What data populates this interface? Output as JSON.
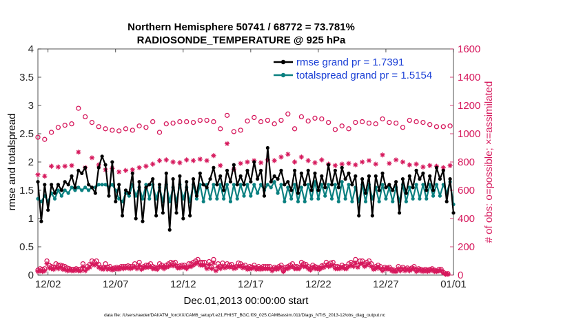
{
  "colors": {
    "rmse": "#000000",
    "spread": "#0a8080",
    "obs": "#d6185c",
    "legend_text": "#1a3fd6",
    "axis": "#262626"
  },
  "chart_data": {
    "type": "line",
    "title": "Northern Hemisphere 50741 / 68772 = 73.781%",
    "subtitle": "RADIOSONDE_TEMPERATURE @ 925 hPa",
    "xlabel": "Dec.01,2013 00:00:00 start",
    "ylabel": "rmse and totalspread",
    "ylabel_right": "# of obs: o=possible; ×=assimilated",
    "footer": "data file: /Users/raeder/DAI/ATM_forcXX/CAM6_setup/f.e21.FHIST_BGC.f09_025.CAM6assim.011/Diags_NTrS_2013-12/obs_diag_output.nc",
    "x_ticks": [
      "12/02",
      "12/07",
      "12/12",
      "12/17",
      "12/22",
      "12/27",
      "01/01"
    ],
    "x_tick_days": [
      1,
      6,
      11,
      16,
      21,
      26,
      31
    ],
    "xlim_days": [
      0.25,
      31.0
    ],
    "ylim": [
      0,
      4
    ],
    "y_ticks": [
      "0",
      "0.5",
      "1",
      "1.5",
      "2",
      "2.5",
      "3",
      "3.5",
      "4"
    ],
    "ylim_right": [
      0,
      1600
    ],
    "y_ticks_right": [
      "0",
      "200",
      "400",
      "600",
      "800",
      "1000",
      "1200",
      "1400",
      "1600"
    ],
    "legend_position": "top-right",
    "series": [
      {
        "name": "rmse grand pr = 1.7391",
        "axis": "left",
        "marker": "dot",
        "x_start_day": 0.25,
        "x_step_day": 0.25,
        "values": [
          1.65,
          0.95,
          1.6,
          1.15,
          1.6,
          1.45,
          1.6,
          1.5,
          1.65,
          1.6,
          1.75,
          1.55,
          1.85,
          1.8,
          1.9,
          1.6,
          1.55,
          1.45,
          1.9,
          2.1,
          1.95,
          1.4,
          2.0,
          1.3,
          1.6,
          1.05,
          1.5,
          1.45,
          1.8,
          1.0,
          1.65,
          0.95,
          1.55,
          1.6,
          1.7,
          1.05,
          1.6,
          1.1,
          1.8,
          0.8,
          1.7,
          1.1,
          1.75,
          1.0,
          1.65,
          1.05,
          1.7,
          1.4,
          1.8,
          1.6,
          1.55,
          1.7,
          1.9,
          1.6,
          1.75,
          1.5,
          1.85,
          1.65,
          1.95,
          1.6,
          1.75,
          1.6,
          1.85,
          1.65,
          2.0,
          1.7,
          1.85,
          1.4,
          2.25,
          1.65,
          1.75,
          1.7,
          1.85,
          1.6,
          1.65,
          1.5,
          1.85,
          1.45,
          1.8,
          1.6,
          1.85,
          1.5,
          1.8,
          1.5,
          1.75,
          1.55,
          1.95,
          1.6,
          1.85,
          1.55,
          1.9,
          1.7,
          1.8,
          1.6,
          1.75,
          1.05,
          1.7,
          1.45,
          1.75,
          1.05,
          1.75,
          1.5,
          1.8,
          1.55,
          1.6,
          1.5,
          1.65,
          1.1,
          1.7,
          1.45,
          1.75,
          1.55,
          1.85,
          1.7,
          1.8,
          1.5,
          1.75,
          1.5,
          1.9,
          1.7,
          1.85,
          1.3,
          1.7,
          1.5,
          1.75,
          1.55,
          1.85,
          1.5,
          1.75,
          1.6,
          1.95,
          1.7,
          1.75,
          1.55,
          1.75,
          1.05,
          1.8,
          0.95,
          1.75,
          1.45,
          1.85,
          1.5,
          1.7,
          1.55,
          1.95,
          1.9,
          1.85,
          1.45,
          1.8,
          1.3,
          1.7,
          1.4,
          1.95,
          1.6,
          1.85,
          1.75,
          1.8,
          1.55,
          1.75,
          1.5,
          1.85,
          1.65,
          1.8,
          1.45,
          1.5,
          1.35,
          1.75,
          1.55,
          1.85,
          0.65,
          1.75,
          1.55,
          1.8,
          1.55,
          1.7,
          1.5,
          1.8,
          1.6,
          1.75,
          1.55,
          1.85,
          1.5,
          1.85,
          1.6,
          1.75,
          1.55,
          1.85,
          1.4,
          1.75,
          1.6,
          1.85,
          1.2,
          1.75,
          1.65,
          1.8,
          1.25,
          1.7,
          1.15
        ],
        "last_point": [
          31.0,
          1.1
        ]
      },
      {
        "name": "totalspread grand pr = 1.5154",
        "axis": "left",
        "marker": "dot",
        "x_start_day": 0.25,
        "x_step_day": 0.25,
        "values": [
          1.35,
          1.3,
          1.4,
          1.3,
          1.45,
          1.35,
          1.5,
          1.4,
          1.5,
          1.45,
          1.55,
          1.5,
          1.55,
          1.5,
          1.55,
          1.5,
          1.55,
          1.55,
          1.6,
          1.6,
          1.6,
          1.55,
          1.6,
          1.5,
          1.35,
          1.3,
          1.45,
          1.4,
          1.6,
          1.4,
          1.55,
          1.35,
          1.6,
          1.35,
          1.6,
          1.35,
          1.55,
          1.3,
          1.6,
          1.3,
          1.55,
          1.3,
          1.6,
          1.35,
          1.55,
          1.3,
          1.6,
          1.35,
          1.6,
          1.3,
          1.6,
          1.35,
          1.6,
          1.35,
          1.6,
          1.35,
          1.6,
          1.3,
          1.6,
          1.35,
          1.6,
          1.4,
          1.6,
          1.4,
          1.6,
          1.45,
          1.6,
          1.5,
          1.6,
          1.55,
          1.65,
          1.45,
          1.6,
          1.3,
          1.55,
          1.35,
          1.6,
          1.3,
          1.55,
          1.3,
          1.6,
          1.35,
          1.65,
          1.35,
          1.6,
          1.4,
          1.6,
          1.35,
          1.6,
          1.3,
          1.65,
          1.35,
          1.6,
          1.3,
          1.55,
          1.3,
          1.6,
          1.3,
          1.6,
          1.35,
          1.55,
          1.3,
          1.6,
          1.35,
          1.55,
          1.3,
          1.55,
          1.3,
          1.6,
          1.3,
          1.55,
          1.35,
          1.6,
          1.35,
          1.6,
          1.35,
          1.6,
          1.4,
          1.6,
          1.4,
          1.6,
          1.45,
          1.65,
          1.4,
          1.6,
          1.5,
          1.6,
          1.45,
          1.6,
          1.45,
          1.55,
          1.5,
          1.6,
          1.5,
          1.55,
          1.5,
          1.55,
          1.5,
          1.6,
          1.35,
          1.55,
          1.3,
          1.6,
          1.3,
          1.55,
          1.3,
          1.6,
          1.35,
          1.55,
          1.3,
          1.6,
          1.3,
          1.55,
          1.3,
          1.6,
          1.3,
          1.55,
          1.35,
          1.6,
          1.3,
          1.6,
          1.35,
          1.55,
          1.3,
          1.6,
          1.3,
          1.55,
          1.3,
          1.55,
          1.3,
          1.6,
          1.35,
          1.55,
          1.3,
          1.6,
          1.3,
          1.55,
          1.3,
          1.6,
          1.3,
          1.55,
          1.35,
          1.6,
          1.3,
          1.55,
          1.3,
          1.6,
          1.3,
          1.55,
          1.2,
          1.6,
          1.3,
          1.55,
          1.2
        ],
        "last_point": [
          31.0,
          1.25
        ]
      },
      {
        "name": "obs possible (o)",
        "axis": "right",
        "marker": "circle",
        "x_start_day": 0.25,
        "x_step_day": 0.5,
        "values": [
          975,
          960,
          1010,
          1045,
          1060,
          1070,
          1180,
          1120,
          1080,
          1050,
          1035,
          1025,
          1020,
          1035,
          1025,
          1055,
          1045,
          1085,
          1010,
          1070,
          1075,
          1085,
          1085,
          1080,
          1095,
          1095,
          1085,
          1035,
          1130,
          1015,
          1025,
          1090,
          1115,
          1085,
          1095,
          1070,
          1095,
          1140,
          1035,
          1120,
          1090,
          1110,
          1105,
          1080,
          1030,
          1055,
          1035,
          1080,
          1085,
          1075,
          1070,
          1105,
          1080,
          1075,
          1045,
          1095,
          1085,
          1080,
          1065,
          1050,
          1050,
          1055,
          1035,
          1000,
          1030,
          1040,
          1065,
          1040,
          1060,
          1050,
          1060,
          1050
        ],
        "possible_low_values": [
          35,
          45,
          40,
          45,
          100,
          70,
          60,
          55,
          80,
          70,
          70,
          65,
          60,
          50,
          45,
          40,
          40,
          45,
          40,
          40,
          80,
          40,
          60,
          75,
          100,
          90,
          100,
          75,
          55,
          50,
          80,
          55,
          60,
          45,
          50,
          55,
          50,
          60,
          60,
          60,
          65,
          60,
          60,
          80,
          55,
          90,
          50,
          60,
          70,
          70,
          80,
          60,
          55,
          50,
          80,
          70,
          60,
          70,
          80,
          90,
          85,
          90,
          60,
          65,
          70,
          70,
          55,
          80,
          80,
          90,
          100,
          110,
          90,
          90,
          90,
          60,
          95,
          55,
          110,
          40,
          80,
          60,
          85,
          60,
          80,
          70,
          75,
          55,
          60,
          85,
          80,
          65,
          70,
          50,
          60,
          55,
          70,
          50,
          60,
          50,
          60,
          60,
          60,
          60,
          40,
          55,
          50,
          60,
          70,
          30,
          55,
          60,
          70,
          80,
          60,
          60,
          55,
          90,
          80,
          75,
          60,
          45,
          70,
          60,
          55,
          50,
          65,
          70,
          90,
          75,
          85,
          90,
          60,
          60,
          55,
          70,
          60,
          60,
          80,
          90,
          80,
          110,
          70,
          100,
          100,
          80,
          90,
          100,
          80,
          50,
          60,
          70,
          60,
          40,
          55,
          50,
          55,
          40,
          35,
          30,
          60,
          40,
          55,
          40,
          50,
          40,
          50,
          60,
          35,
          45,
          40,
          35,
          40,
          35,
          40,
          45,
          35,
          30,
          40,
          40,
          20,
          10,
          10
        ]
      },
      {
        "name": "obs assimilated (×)",
        "axis": "right",
        "marker": "star",
        "x_start_day": 0.25,
        "x_step_day": 0.5,
        "values": [
          710,
          700,
          770,
          765,
          770,
          775,
          870,
          760,
          830,
          780,
          745,
          755,
          730,
          740,
          745,
          760,
          770,
          785,
          810,
          815,
          800,
          795,
          815,
          810,
          820,
          810,
          845,
          775,
          930,
          750,
          790,
          800,
          810,
          795,
          815,
          810,
          835,
          855,
          800,
          835,
          810,
          795,
          815,
          785,
          775,
          785,
          790,
          780,
          800,
          810,
          785,
          850,
          790,
          815,
          800,
          780,
          785,
          765,
          775,
          770,
          760,
          775,
          770,
          690,
          760,
          775,
          790,
          785,
          765,
          745,
          795,
          720,
          800,
          790
        ],
        "assimilated_low_values": [
          25,
          30,
          25,
          30,
          80,
          50,
          45,
          40,
          55,
          45,
          55,
          40,
          40,
          30,
          35,
          30,
          30,
          35,
          30,
          30,
          60,
          30,
          45,
          55,
          80,
          70,
          80,
          55,
          45,
          40,
          55,
          40,
          45,
          35,
          40,
          45,
          40,
          50,
          45,
          50,
          50,
          45,
          50,
          60,
          45,
          70,
          40,
          50,
          55,
          55,
          60,
          45,
          45,
          40,
          60,
          55,
          45,
          55,
          60,
          70,
          65,
          70,
          50,
          50,
          55,
          55,
          45,
          60,
          60,
          70,
          80,
          85,
          70,
          70,
          70,
          45,
          75,
          45,
          85,
          30,
          60,
          45,
          65,
          50,
          60,
          55,
          60,
          45,
          50,
          65,
          60,
          50,
          55,
          40,
          45,
          45,
          55,
          40,
          45,
          40,
          45,
          45,
          45,
          45,
          30,
          45,
          40,
          45,
          55,
          25,
          45,
          45,
          55,
          60,
          45,
          45,
          45,
          70,
          60,
          60,
          45,
          35,
          55,
          45,
          45,
          40,
          50,
          55,
          70,
          60,
          65,
          70,
          45,
          45,
          45,
          55,
          45,
          45,
          60,
          70,
          60,
          85,
          55,
          80,
          80,
          60,
          70,
          80,
          60,
          40,
          45,
          55,
          45,
          30,
          45,
          40,
          45,
          30,
          25,
          25,
          45,
          30,
          45,
          30,
          40,
          30,
          40,
          45,
          25,
          35,
          30,
          25,
          30,
          25,
          30,
          35,
          25,
          25,
          30,
          30,
          15,
          5,
          5
        ]
      }
    ]
  }
}
